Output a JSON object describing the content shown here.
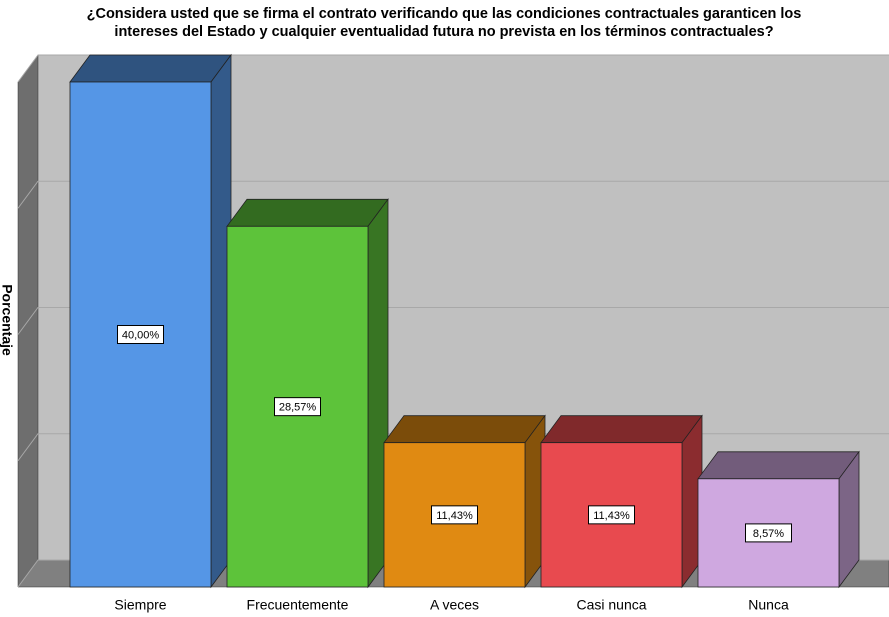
{
  "chart_data": {
    "type": "bar",
    "title": [
      "¿Considera usted que se firma el contrato verificando que las condiciones contractuales garanticen los",
      "intereses del Estado y cualquier eventualidad futura no prevista en los términos contractuales?"
    ],
    "y_label": "Porcentaje",
    "categories": [
      "Siempre",
      "Frecuentemente",
      "A veces",
      "Casi nunca",
      "Nunca"
    ],
    "values": [
      40,
      28.57,
      11.43,
      11.43,
      8.57
    ],
    "value_labels": [
      "40,00%",
      "28,57%",
      "11,43%",
      "11,43%",
      "8,57%"
    ],
    "colors": [
      "#5596e6",
      "#5dc33a",
      "#e08a12",
      "#e84a4f",
      "#cfa8e0"
    ],
    "ylim": [
      0,
      40
    ],
    "yticks": [
      0,
      10,
      20,
      30,
      40
    ],
    "grid": true
  }
}
